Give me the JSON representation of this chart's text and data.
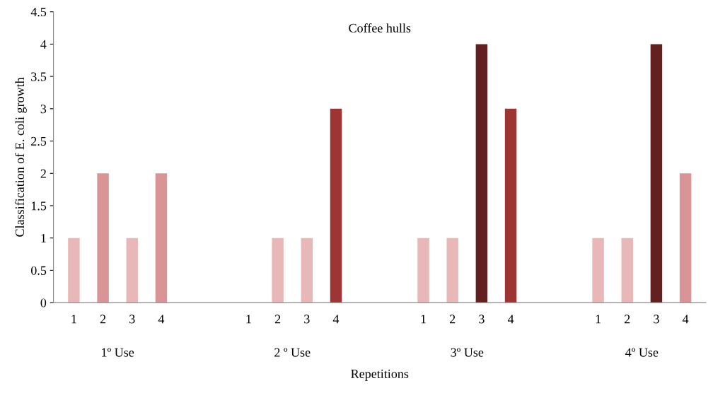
{
  "chart_data": {
    "type": "bar",
    "title": "Coffee hulls",
    "xlabel": "Repetitions",
    "ylabel": "Classification of E. coli growth",
    "categories": [
      "1",
      "2",
      "3",
      "4",
      null,
      null,
      "1",
      "2",
      "3",
      "4",
      null,
      null,
      "1",
      "2",
      "3",
      "4",
      null,
      null,
      "1",
      "2",
      "3",
      "4"
    ],
    "values": [
      1,
      2,
      1,
      2,
      null,
      null,
      0,
      1,
      1,
      3,
      null,
      null,
      1,
      1,
      4,
      3,
      null,
      null,
      1,
      1,
      4,
      2
    ],
    "colors": [
      "#e8b8b8",
      "#d99595",
      "#e8b8b8",
      "#d99595",
      "#ffffff",
      "#ffffff",
      "#e8b8b8",
      "#e8b8b8",
      "#e8b8b8",
      "#9e3535",
      "#ffffff",
      "#ffffff",
      "#e8b8b8",
      "#e8b8b8",
      "#622020",
      "#9e3535",
      "#ffffff",
      "#ffffff",
      "#e8b8b8",
      "#e8b8b8",
      "#622020",
      "#d99595"
    ],
    "annotations": [
      "1º Use",
      "2 º Use",
      "3º Use",
      "4º Use"
    ],
    "ylim": [
      0,
      4.5
    ],
    "yticks": [
      0,
      0.5,
      1,
      1.5,
      2,
      2.5,
      3,
      3.5,
      4,
      4.5
    ],
    "grid": false,
    "legend": false
  }
}
